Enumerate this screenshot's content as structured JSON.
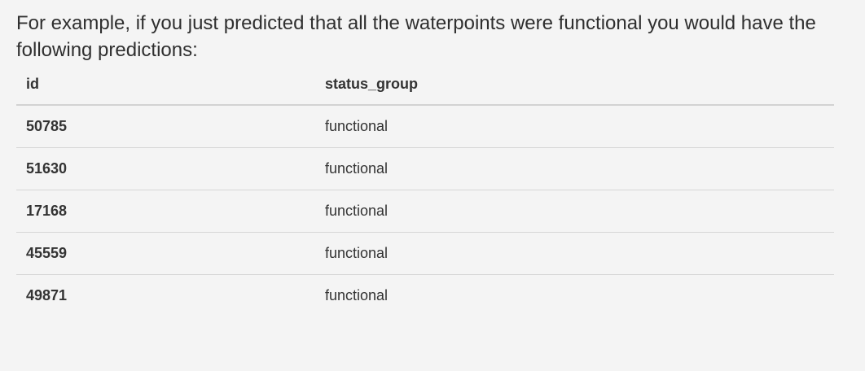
{
  "intro_text": "For example, if you just predicted that all the waterpoints were functional you would have the following predictions:",
  "table": {
    "headers": [
      "id",
      "status_group"
    ],
    "rows": [
      [
        "50785",
        "functional"
      ],
      [
        "51630",
        "functional"
      ],
      [
        "17168",
        "functional"
      ],
      [
        "45559",
        "functional"
      ],
      [
        "49871",
        "functional"
      ]
    ]
  }
}
